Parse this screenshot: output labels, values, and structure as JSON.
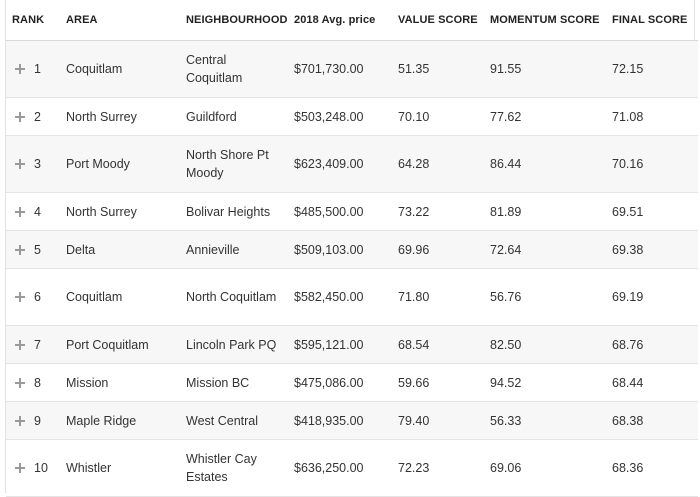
{
  "headers": {
    "rank": "RANK",
    "area": "AREA",
    "neighbourhood": "NEIGHBOURHOOD",
    "price": "2018 Avg. price",
    "value": "VALUE SCORE",
    "momentum": "MOMENTUM SCORE",
    "final": "FINAL SCORE"
  },
  "rows": [
    {
      "rank": "1",
      "area": "Coquitlam",
      "neighbourhood": "Central Coquitlam",
      "price": "$701,730.00",
      "value": "51.35",
      "momentum": "91.55",
      "final": "72.15"
    },
    {
      "rank": "2",
      "area": "North Surrey",
      "neighbourhood": "Guildford",
      "price": "$503,248.00",
      "value": "70.10",
      "momentum": "77.62",
      "final": "71.08"
    },
    {
      "rank": "3",
      "area": "Port Moody",
      "neighbourhood": "North Shore Pt Moody",
      "price": "$623,409.00",
      "value": "64.28",
      "momentum": "86.44",
      "final": "70.16"
    },
    {
      "rank": "4",
      "area": "North Surrey",
      "neighbourhood": "Bolivar Heights",
      "price": "$485,500.00",
      "value": "73.22",
      "momentum": "81.89",
      "final": "69.51"
    },
    {
      "rank": "5",
      "area": "Delta",
      "neighbourhood": "Annieville",
      "price": "$509,103.00",
      "value": "69.96",
      "momentum": "72.64",
      "final": "69.38"
    },
    {
      "rank": "6",
      "area": "Coquitlam",
      "neighbourhood": "North Coquitlam",
      "price": "$582,450.00",
      "value": "71.80",
      "momentum": "56.76",
      "final": "69.19"
    },
    {
      "rank": "7",
      "area": "Port Coquitlam",
      "neighbourhood": "Lincoln Park PQ",
      "price": "$595,121.00",
      "value": "68.54",
      "momentum": "82.50",
      "final": "68.76"
    },
    {
      "rank": "8",
      "area": "Mission",
      "neighbourhood": "Mission BC",
      "price": "$475,086.00",
      "value": "59.66",
      "momentum": "94.52",
      "final": "68.44"
    },
    {
      "rank": "9",
      "area": "Maple Ridge",
      "neighbourhood": "West Central",
      "price": "$418,935.00",
      "value": "79.40",
      "momentum": "56.33",
      "final": "68.38"
    },
    {
      "rank": "10",
      "area": "Whistler",
      "neighbourhood": "Whistler Cay Estates",
      "price": "$636,250.00",
      "value": "72.23",
      "momentum": "69.06",
      "final": "68.36"
    }
  ]
}
